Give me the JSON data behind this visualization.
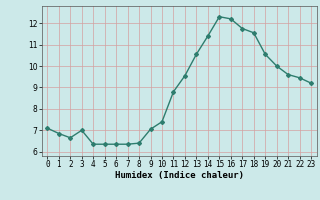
{
  "x": [
    0,
    1,
    2,
    3,
    4,
    5,
    6,
    7,
    8,
    9,
    10,
    11,
    12,
    13,
    14,
    15,
    16,
    17,
    18,
    19,
    20,
    21,
    22,
    23
  ],
  "y": [
    7.1,
    6.85,
    6.65,
    7.0,
    6.35,
    6.35,
    6.35,
    6.35,
    6.4,
    7.05,
    7.4,
    8.8,
    9.55,
    10.55,
    11.4,
    12.3,
    12.2,
    11.75,
    11.55,
    10.55,
    10.0,
    9.6,
    9.45,
    9.2
  ],
  "title": "",
  "xlabel": "Humidex (Indice chaleur)",
  "ylabel": "",
  "xlim": [
    -0.5,
    23.5
  ],
  "ylim": [
    5.8,
    12.8
  ],
  "yticks": [
    6,
    7,
    8,
    9,
    10,
    11,
    12
  ],
  "xticks": [
    0,
    1,
    2,
    3,
    4,
    5,
    6,
    7,
    8,
    9,
    10,
    11,
    12,
    13,
    14,
    15,
    16,
    17,
    18,
    19,
    20,
    21,
    22,
    23
  ],
  "line_color": "#2e7d6e",
  "marker": "D",
  "marker_size": 2.0,
  "bg_color": "#cce9e9",
  "grid_color": "#d4a0a0",
  "line_width": 1.0,
  "label_fontsize": 6.5,
  "tick_fontsize": 5.5
}
